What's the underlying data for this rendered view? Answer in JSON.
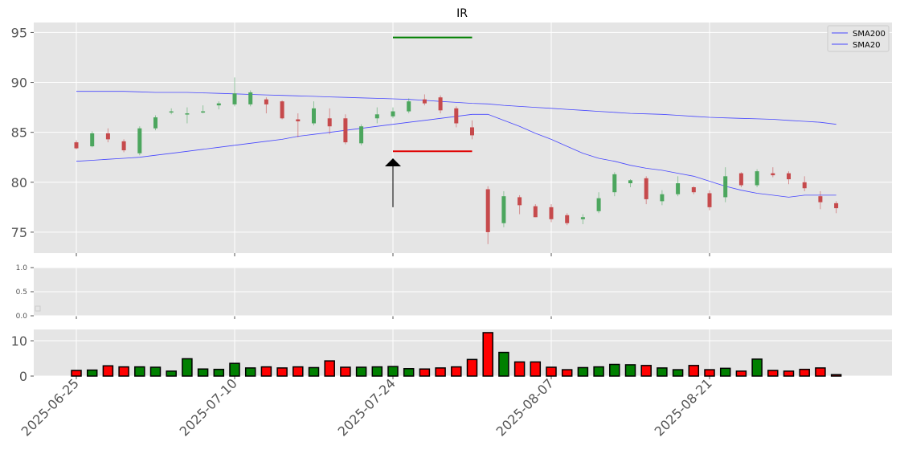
{
  "chart_data": {
    "type": "candlestick",
    "title": "IR",
    "dates": [
      "2025-06-25",
      "2025-06-26",
      "2025-06-27",
      "2025-06-30",
      "2025-07-01",
      "2025-07-02",
      "2025-07-03",
      "2025-07-07",
      "2025-07-08",
      "2025-07-09",
      "2025-07-10",
      "2025-07-11",
      "2025-07-14",
      "2025-07-15",
      "2025-07-16",
      "2025-07-17",
      "2025-07-18",
      "2025-07-21",
      "2025-07-22",
      "2025-07-23",
      "2025-07-24",
      "2025-07-25",
      "2025-07-28",
      "2025-07-29",
      "2025-07-30",
      "2025-07-31",
      "2025-08-01",
      "2025-08-04",
      "2025-08-05",
      "2025-08-06",
      "2025-08-07",
      "2025-08-08",
      "2025-08-11",
      "2025-08-12",
      "2025-08-13",
      "2025-08-14",
      "2025-08-15",
      "2025-08-18",
      "2025-08-19",
      "2025-08-20",
      "2025-08-21",
      "2025-08-22",
      "2025-08-25",
      "2025-08-26",
      "2025-08-27",
      "2025-08-28",
      "2025-08-29",
      "2025-09-02",
      "2025-09-03"
    ],
    "ohlc": [
      [
        84.0,
        84.2,
        83.3,
        83.4
      ],
      [
        83.6,
        85.1,
        83.5,
        84.9
      ],
      [
        84.9,
        85.4,
        84.0,
        84.3
      ],
      [
        84.1,
        84.3,
        83.0,
        83.2
      ],
      [
        82.9,
        85.6,
        82.7,
        85.4
      ],
      [
        85.4,
        86.7,
        85.2,
        86.5
      ],
      [
        87.0,
        87.4,
        86.8,
        87.1
      ],
      [
        86.8,
        87.5,
        85.9,
        86.9
      ],
      [
        87.0,
        87.7,
        86.9,
        87.1
      ],
      [
        87.7,
        88.1,
        87.3,
        87.9
      ],
      [
        87.8,
        90.5,
        87.6,
        88.9
      ],
      [
        87.8,
        89.2,
        87.6,
        89.0
      ],
      [
        88.3,
        88.5,
        86.9,
        87.8
      ],
      [
        88.1,
        88.2,
        86.3,
        86.4
      ],
      [
        86.3,
        86.9,
        84.5,
        86.1
      ],
      [
        85.9,
        88.1,
        85.7,
        87.4
      ],
      [
        86.4,
        87.4,
        84.8,
        85.6
      ],
      [
        86.4,
        86.8,
        83.8,
        84.0
      ],
      [
        83.9,
        85.8,
        83.7,
        85.6
      ],
      [
        86.4,
        87.5,
        85.9,
        86.8
      ],
      [
        86.6,
        87.5,
        86.4,
        87.1
      ],
      [
        87.1,
        88.4,
        86.9,
        88.1
      ],
      [
        88.3,
        88.8,
        87.7,
        87.9
      ],
      [
        88.5,
        88.7,
        86.9,
        87.2
      ],
      [
        87.4,
        87.6,
        85.5,
        85.9
      ],
      [
        85.5,
        86.2,
        84.3,
        84.7
      ],
      [
        79.3,
        79.6,
        73.8,
        75.0
      ],
      [
        75.9,
        79.1,
        75.5,
        78.6
      ],
      [
        78.5,
        78.7,
        76.8,
        77.7
      ],
      [
        77.6,
        77.8,
        76.5,
        76.5
      ],
      [
        77.5,
        77.8,
        76.0,
        76.3
      ],
      [
        76.7,
        76.9,
        75.7,
        75.9
      ],
      [
        76.3,
        76.8,
        75.8,
        76.5
      ],
      [
        77.1,
        79.0,
        76.9,
        78.4
      ],
      [
        79.0,
        81.0,
        78.6,
        80.8
      ],
      [
        79.9,
        80.3,
        79.5,
        80.2
      ],
      [
        80.4,
        80.6,
        77.8,
        78.3
      ],
      [
        78.1,
        79.2,
        77.7,
        78.8
      ],
      [
        78.8,
        80.6,
        78.6,
        79.9
      ],
      [
        79.5,
        79.6,
        78.8,
        79.0
      ],
      [
        78.9,
        79.2,
        77.2,
        77.5
      ],
      [
        78.5,
        81.5,
        78.0,
        80.6
      ],
      [
        80.9,
        81.0,
        79.5,
        79.7
      ],
      [
        79.7,
        81.3,
        79.5,
        81.1
      ],
      [
        80.9,
        81.5,
        80.5,
        80.7
      ],
      [
        80.9,
        81.1,
        79.8,
        80.3
      ],
      [
        80.0,
        80.6,
        79.1,
        79.4
      ],
      [
        78.6,
        79.1,
        77.3,
        78.0
      ],
      [
        77.9,
        78.1,
        76.9,
        77.4
      ]
    ],
    "sma20": [
      82.1,
      82.2,
      82.3,
      82.4,
      82.5,
      82.7,
      82.9,
      83.1,
      83.3,
      83.5,
      83.7,
      83.9,
      84.1,
      84.3,
      84.6,
      84.8,
      85.0,
      85.2,
      85.4,
      85.6,
      85.8,
      86.0,
      86.2,
      86.4,
      86.6,
      86.8,
      86.8,
      86.2,
      85.6,
      84.9,
      84.3,
      83.6,
      82.9,
      82.4,
      82.1,
      81.7,
      81.4,
      81.2,
      80.9,
      80.6,
      80.1,
      79.6,
      79.2,
      78.9,
      78.7,
      78.5,
      78.7,
      78.7,
      78.7
    ],
    "sma200": [
      89.1,
      89.1,
      89.1,
      89.1,
      89.05,
      89.0,
      89.0,
      89.0,
      88.95,
      88.9,
      88.85,
      88.8,
      88.75,
      88.7,
      88.65,
      88.6,
      88.55,
      88.5,
      88.45,
      88.4,
      88.35,
      88.3,
      88.2,
      88.1,
      88.0,
      87.9,
      87.85,
      87.7,
      87.6,
      87.5,
      87.4,
      87.3,
      87.2,
      87.1,
      87.0,
      86.9,
      86.85,
      86.8,
      86.7,
      86.6,
      86.5,
      86.45,
      86.4,
      86.35,
      86.3,
      86.2,
      86.1,
      86.0,
      85.8
    ],
    "volume": [
      1.6,
      1.7,
      2.9,
      2.6,
      2.6,
      2.5,
      1.4,
      4.9,
      2.0,
      1.9,
      3.6,
      2.3,
      2.6,
      2.3,
      2.6,
      2.4,
      4.3,
      2.5,
      2.5,
      2.6,
      2.7,
      2.1,
      2.0,
      2.3,
      2.6,
      4.7,
      12.3,
      6.7,
      4.0,
      4.0,
      2.5,
      1.8,
      2.4,
      2.6,
      3.3,
      3.2,
      3.0,
      2.3,
      1.8,
      3.0,
      1.8,
      2.2,
      1.4,
      4.8,
      1.6,
      1.4,
      1.9,
      2.3,
      0.4
    ],
    "volume_ticks": [
      "0",
      "10"
    ],
    "mid_panel_ticks": [
      "0.0",
      "0.5",
      "1.0"
    ],
    "y_ticks": [
      "75",
      "80",
      "85",
      "90",
      "95"
    ],
    "x_ticks": [
      "2025-06-25",
      "2025-07-10",
      "2025-07-24",
      "2025-08-07",
      "2025-08-21"
    ],
    "x_tick_indices": [
      0,
      10,
      20,
      30,
      40
    ],
    "legend": [
      "SMA200",
      "SMA20"
    ],
    "legend_position": "top-right",
    "annotation": {
      "index": 20,
      "high_line": 94.5,
      "low_line": 83.1,
      "arrow_tip": 82.4,
      "arrow_tail": 77.5,
      "end_index": 25
    },
    "y_range": [
      72.9,
      96.0
    ],
    "volume_range": [
      0,
      13.2
    ],
    "grid": true,
    "colors": {
      "up": "#4ca65e",
      "down": "#c64a4c",
      "up_volume": "#008000",
      "down_volume": "#ff0000",
      "sma": "#4747ff",
      "green_line": "#008000",
      "red_line": "#e00000",
      "panel_bg": "#e5e5e5"
    }
  }
}
